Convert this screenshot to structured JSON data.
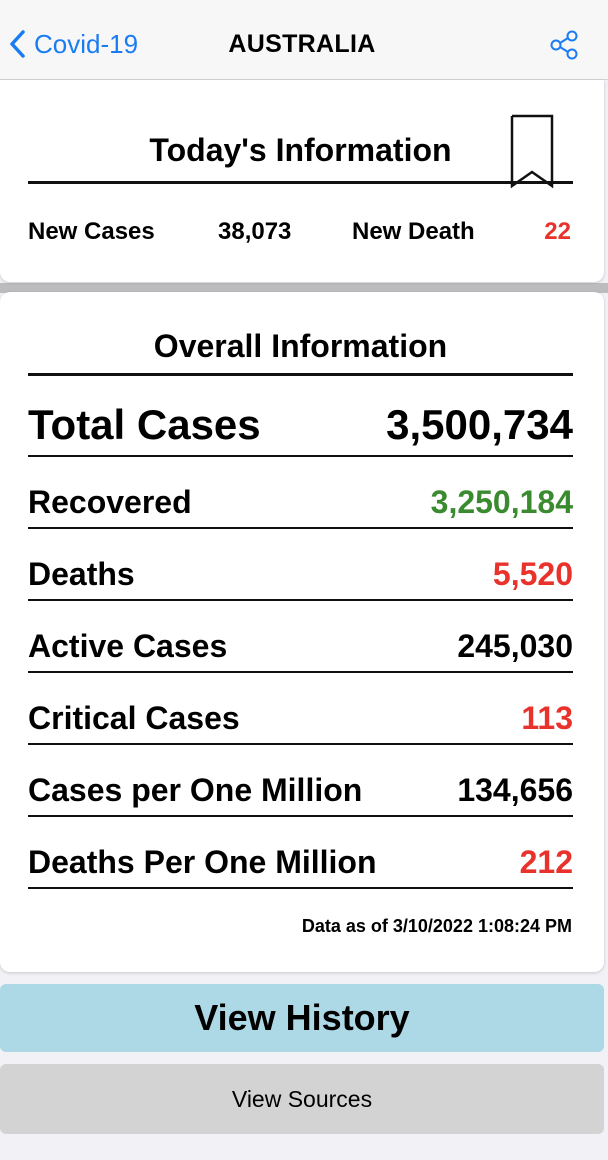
{
  "nav": {
    "back_label": "Covid-19",
    "title": "AUSTRALIA",
    "back_icon": "chevron-left-icon",
    "share_icon": "share-icon"
  },
  "today": {
    "title": "Today's Information",
    "bookmark_icon": "bookmark-icon",
    "new_cases_label": "New Cases",
    "new_cases_value": "38,073",
    "new_death_label": "New Death",
    "new_death_value": "22"
  },
  "overall": {
    "title": "Overall Information",
    "rows": [
      {
        "label": "Total Cases",
        "value": "3,500,734",
        "color": "#000000"
      },
      {
        "label": "Recovered",
        "value": "3,250,184",
        "color": "#3a8a2f"
      },
      {
        "label": "Deaths",
        "value": "5,520",
        "color": "#e8322b"
      },
      {
        "label": "Active Cases",
        "value": "245,030",
        "color": "#000000"
      },
      {
        "label": "Critical Cases",
        "value": "113",
        "color": "#e8322b"
      },
      {
        "label": "Cases per One Million",
        "value": "134,656",
        "color": "#000000"
      },
      {
        "label": "Deaths Per One Million",
        "value": "212",
        "color": "#e8322b"
      }
    ],
    "timestamp": "Data as of 3/10/2022 1:08:24 PM"
  },
  "buttons": {
    "history_label": "View History",
    "sources_label": "View Sources"
  },
  "colors": {
    "accent": "#1a7cf2",
    "red": "#e8322b",
    "green": "#3a8a2f",
    "history_bg": "#add8e6",
    "sources_bg": "#d3d3d3"
  }
}
